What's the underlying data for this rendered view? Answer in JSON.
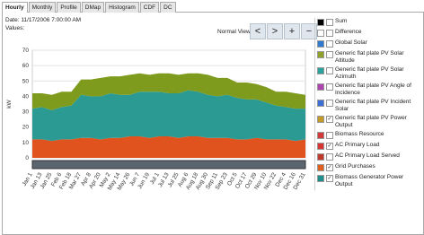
{
  "tabs": [
    "Hourly",
    "Monthly",
    "Profile",
    "DMap",
    "Histogram",
    "CDF",
    "DC"
  ],
  "header": {
    "date": "Date: 11/17/2006 7:00:00 AM",
    "values": "Values:",
    "view": "Normal View"
  },
  "buttons": [
    "<",
    ">",
    "+",
    "−"
  ],
  "legend": [
    {
      "label": "Sum",
      "color": "#000000",
      "checked": false
    },
    {
      "label": "Difference",
      "color": "#ffffff",
      "checked": false
    },
    {
      "label": "Global Solar",
      "color": "#2f7bd1",
      "checked": false
    },
    {
      "label": "Generic flat plate PV Solar Altitude",
      "color": "#8fa12a",
      "checked": false
    },
    {
      "label": "Generic flat plate PV Solar Azimuth",
      "color": "#2aa39c",
      "checked": false
    },
    {
      "label": "Generic flat plate PV Angle of Incidence",
      "color": "#b044b0",
      "checked": false
    },
    {
      "label": "Generic flat plate PV Incident Solar",
      "color": "#3d6fd6",
      "checked": false
    },
    {
      "label": "Generic flat plate PV Power Output",
      "color": "#c29a2a",
      "checked": true
    },
    {
      "label": "Biomass Resource",
      "color": "#d23a3a",
      "checked": false
    },
    {
      "label": "AC Primary Load",
      "color": "#d83434",
      "checked": true
    },
    {
      "label": "AC Primary Load Served",
      "color": "#c0392b",
      "checked": false
    },
    {
      "label": "Grid Purchases",
      "color": "#e06020",
      "checked": true
    },
    {
      "label": "Biomass Generator Power Output",
      "color": "#1e8f8a",
      "checked": true
    }
  ],
  "chart_data": {
    "type": "area",
    "stacked": true,
    "y_label": "kW",
    "categories": [
      "Jan 1",
      "Jan 13",
      "Jan 25",
      "Feb 6",
      "Feb 18",
      "Mar 27",
      "Apr 8",
      "Apr 20",
      "May 2",
      "May 14",
      "May 26",
      "Jun 7",
      "Jun 19",
      "Jul 1",
      "Jul 13",
      "Jul 25",
      "Aug 6",
      "Aug 18",
      "Aug 30",
      "Sep 11",
      "Sep 23",
      "Oct 5",
      "Oct 17",
      "Oct 29",
      "Nov 10",
      "Nov 22",
      "Dec 4",
      "Dec 16",
      "Dec 31"
    ],
    "series": [
      {
        "name": "Grid Purchases",
        "color": "#e0531f",
        "values": [
          12,
          12,
          11,
          12,
          12,
          13,
          13,
          12,
          13,
          13,
          14,
          14,
          13,
          14,
          14,
          13,
          14,
          14,
          13,
          13,
          13,
          12,
          12,
          13,
          12,
          12,
          12,
          11,
          12
        ]
      },
      {
        "name": "Biomass Generator Power Output",
        "color": "#2a9a93",
        "values": [
          20,
          21,
          20,
          21,
          22,
          28,
          27,
          28,
          29,
          28,
          27,
          29,
          30,
          29,
          28,
          29,
          30,
          29,
          28,
          27,
          28,
          27,
          26,
          25,
          24,
          22,
          21,
          21,
          20
        ]
      },
      {
        "name": "Generic flat plate PV Power Output",
        "color": "#7f9b1e",
        "values": [
          10,
          9,
          10,
          10,
          9,
          10,
          11,
          12,
          11,
          12,
          13,
          12,
          11,
          12,
          13,
          12,
          11,
          12,
          13,
          12,
          11,
          10,
          11,
          10,
          10,
          9,
          10,
          10,
          9
        ]
      }
    ],
    "ylim": [
      0,
      70
    ],
    "yticks": [
      0,
      10,
      20,
      30,
      40,
      50,
      60,
      70
    ],
    "grid": true
  }
}
